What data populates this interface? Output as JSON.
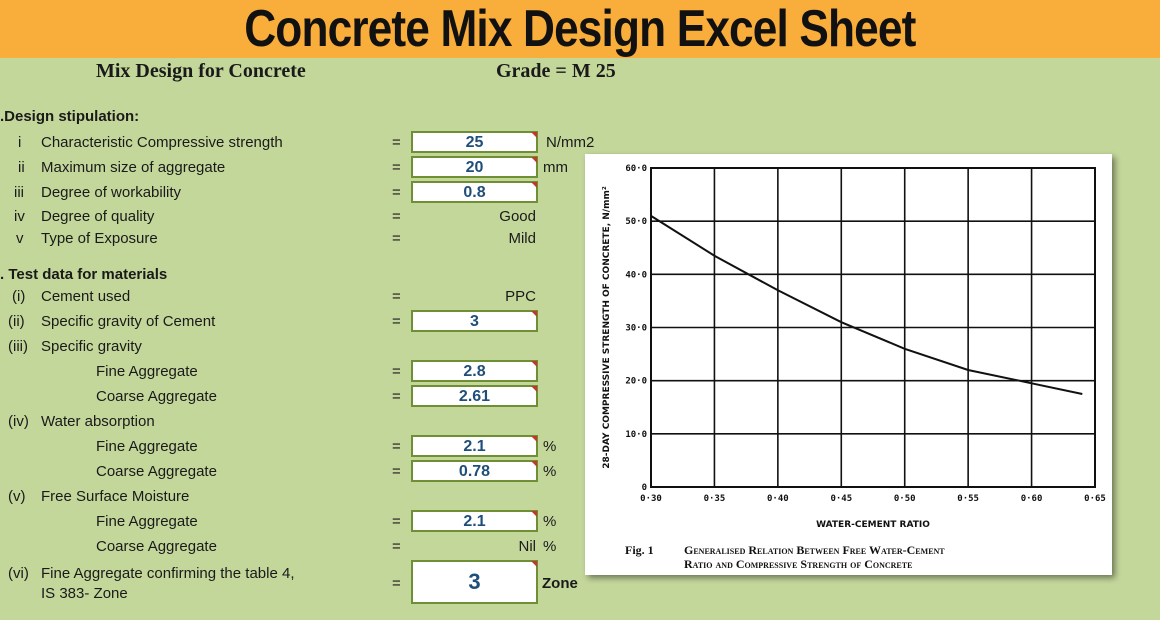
{
  "banner": {
    "title": "Concrete Mix Design Excel Sheet"
  },
  "sheet": {
    "heading": "Mix Design for Concrete",
    "grade": "Grade = M 25",
    "section_a": ".Design stipulation:",
    "section_b": ". Test data for materials",
    "rows": [
      {
        "num": "i",
        "label": "Characteristic Compressive strength",
        "value": "25",
        "unit": "N/mm2"
      },
      {
        "num": "ii",
        "label": "Maximum size of aggregate",
        "value": "20",
        "unit": "mm"
      },
      {
        "num": "iii",
        "label": "Degree of workability",
        "value": "0.8",
        "unit": ""
      },
      {
        "num": "iv",
        "label": "Degree of quality",
        "value": "Good",
        "unit": ""
      },
      {
        "num": "v",
        "label": "Type of Exposure",
        "value": "Mild",
        "unit": ""
      },
      {
        "num": "(i)",
        "label": "Cement used",
        "value": "PPC",
        "unit": ""
      },
      {
        "num": "(ii)",
        "label": "Specific gravity of Cement",
        "value": "3",
        "unit": ""
      },
      {
        "num": "(iii)",
        "label": "Specific gravity",
        "value": "",
        "unit": ""
      },
      {
        "num": "",
        "label": "Fine Aggregate",
        "value": "2.8",
        "unit": ""
      },
      {
        "num": "",
        "label": "Coarse Aggregate",
        "value": "2.61",
        "unit": ""
      },
      {
        "num": "(iv)",
        "label": "Water absorption",
        "value": "",
        "unit": ""
      },
      {
        "num": "",
        "label": "Fine Aggregate",
        "value": "2.1",
        "unit": "%"
      },
      {
        "num": "",
        "label": "Coarse Aggregate",
        "value": "0.78",
        "unit": "%"
      },
      {
        "num": "(v)",
        "label": "Free Surface Moisture",
        "value": "",
        "unit": ""
      },
      {
        "num": "",
        "label": "Fine Aggregate",
        "value": "2.1",
        "unit": "%"
      },
      {
        "num": "",
        "label": "Coarse Aggregate",
        "value": "Nil",
        "unit": "%"
      },
      {
        "num": "(vi)",
        "label": "Fine Aggregate confirming the table 4,",
        "label2": "IS 383- Zone",
        "value": "3",
        "unit": "Zone"
      }
    ],
    "equals": "="
  },
  "chart_data": {
    "type": "line",
    "xlabel": "WATER-CEMENT RATIO",
    "ylabel": "28-DAY COMPRESSIVE STRENGTH OF CONCRETE, N/mm²",
    "caption_fig": "Fig. 1",
    "caption_line1": "Generalised Relation Between Free Water-Cement",
    "caption_line2": "Ratio and Compressive Strength of Concrete",
    "x_ticks": [
      "0·30",
      "0·35",
      "0·40",
      "0·45",
      "0·50",
      "0·55",
      "0·60",
      "0·65"
    ],
    "y_ticks": [
      "0",
      "10·0",
      "20·0",
      "30·0",
      "40·0",
      "50·0",
      "60·0"
    ],
    "xlim": [
      0.3,
      0.65
    ],
    "ylim": [
      0,
      60
    ],
    "grid": true,
    "series": [
      {
        "x": [
          0.3,
          0.35,
          0.4,
          0.45,
          0.5,
          0.55,
          0.6,
          0.64
        ],
        "y": [
          51,
          43.5,
          37,
          31,
          26,
          22,
          19.5,
          17.5
        ]
      }
    ]
  }
}
